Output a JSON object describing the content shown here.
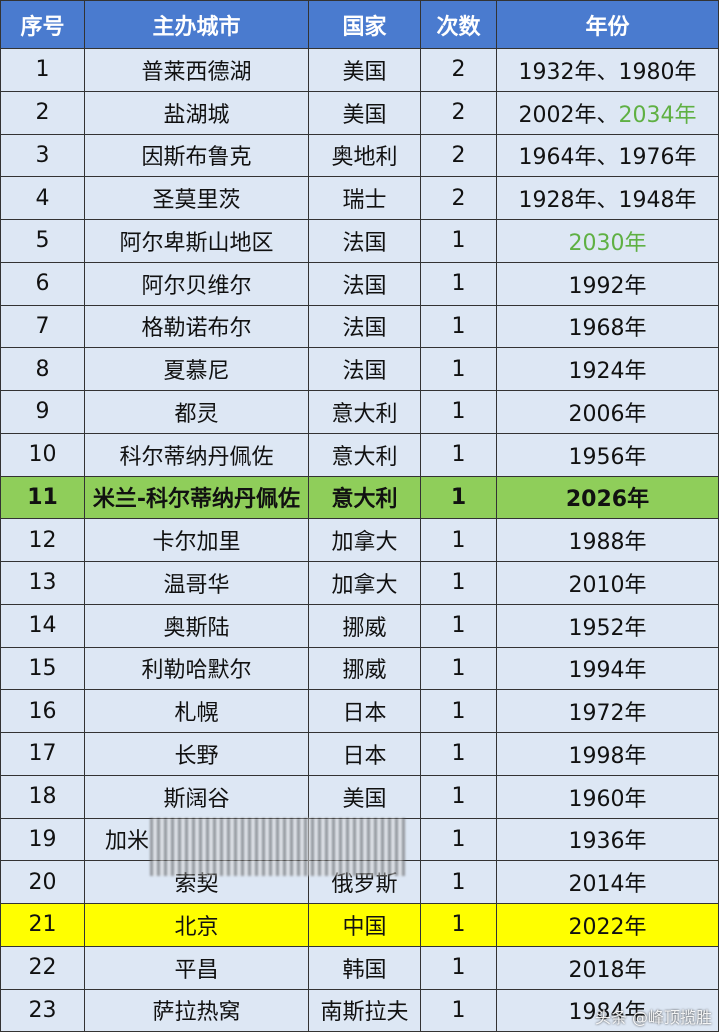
{
  "header": [
    "序号",
    "主办城市",
    "国家",
    "次数",
    "年份"
  ],
  "rows": [
    {
      "no": 1,
      "city": "普莱西德湖",
      "country": "美国",
      "times": 2,
      "year": [
        {
          "text": "1932年、1980年"
        }
      ]
    },
    {
      "no": 2,
      "city": "盐湖城",
      "country": "美国",
      "times": 2,
      "year": [
        {
          "text": "2002年、"
        },
        {
          "text": "2034年",
          "color": "#5fb043"
        }
      ]
    },
    {
      "no": 3,
      "city": "因斯布鲁克",
      "country": "奥地利",
      "times": 2,
      "year": [
        {
          "text": "1964年、1976年"
        }
      ]
    },
    {
      "no": 4,
      "city": "圣莫里茨",
      "country": "瑞士",
      "times": 2,
      "year": [
        {
          "text": "1928年、1948年"
        }
      ]
    },
    {
      "no": 5,
      "city": "阿尔卑斯山地区",
      "country": "法国",
      "times": 1,
      "year": [
        {
          "text": "2030年",
          "color": "#5fb043"
        }
      ]
    },
    {
      "no": 6,
      "city": "阿尔贝维尔",
      "country": "法国",
      "times": 1,
      "year": [
        {
          "text": "1992年"
        }
      ]
    },
    {
      "no": 7,
      "city": "格勒诺布尔",
      "country": "法国",
      "times": 1,
      "year": [
        {
          "text": "1968年"
        }
      ]
    },
    {
      "no": 8,
      "city": "夏慕尼",
      "country": "法国",
      "times": 1,
      "year": [
        {
          "text": "1924年"
        }
      ]
    },
    {
      "no": 9,
      "city": "都灵",
      "country": "意大利",
      "times": 1,
      "year": [
        {
          "text": "2006年"
        }
      ]
    },
    {
      "no": 10,
      "city": "科尔蒂纳丹佩佐",
      "country": "意大利",
      "times": 1,
      "year": [
        {
          "text": "1956年"
        }
      ]
    },
    {
      "no": 11,
      "city": "米兰-科尔蒂纳丹佩佐",
      "country": "意大利",
      "times": 1,
      "year": [
        {
          "text": "2026年"
        }
      ],
      "highlight": "#8fce5a",
      "bold": true
    },
    {
      "no": 12,
      "city": "卡尔加里",
      "country": "加拿大",
      "times": 1,
      "year": [
        {
          "text": "1988年"
        }
      ]
    },
    {
      "no": 13,
      "city": "温哥华",
      "country": "加拿大",
      "times": 1,
      "year": [
        {
          "text": "2010年"
        }
      ]
    },
    {
      "no": 14,
      "city": "奥斯陆",
      "country": "挪威",
      "times": 1,
      "year": [
        {
          "text": "1952年"
        }
      ]
    },
    {
      "no": 15,
      "city": "利勒哈默尔",
      "country": "挪威",
      "times": 1,
      "year": [
        {
          "text": "1994年"
        }
      ]
    },
    {
      "no": 16,
      "city": "札幌",
      "country": "日本",
      "times": 1,
      "year": [
        {
          "text": "1972年"
        }
      ]
    },
    {
      "no": 17,
      "city": "长野",
      "country": "日本",
      "times": 1,
      "year": [
        {
          "text": "1998年"
        }
      ]
    },
    {
      "no": 18,
      "city": "斯阔谷",
      "country": "美国",
      "times": 1,
      "year": [
        {
          "text": "1960年"
        }
      ]
    },
    {
      "no": 19,
      "city": "加米",
      "country": null,
      "times": 1,
      "year": [
        {
          "text": "1936年"
        }
      ],
      "obscured": true
    },
    {
      "no": 20,
      "city": "索契",
      "country": "俄罗斯",
      "times": 1,
      "year": [
        {
          "text": "2014年"
        }
      ]
    },
    {
      "no": 21,
      "city": "北京",
      "country": "中国",
      "times": 1,
      "year": [
        {
          "text": "2022年"
        }
      ],
      "highlight": "#ffff00"
    },
    {
      "no": 22,
      "city": "平昌",
      "country": "韩国",
      "times": 1,
      "year": [
        {
          "text": "2018年"
        }
      ]
    },
    {
      "no": 23,
      "city": "萨拉热窝",
      "country": "南斯拉夫",
      "times": 1,
      "year": [
        {
          "text": "1984年"
        }
      ]
    }
  ],
  "watermark": "头条 @峰顶揽胜"
}
